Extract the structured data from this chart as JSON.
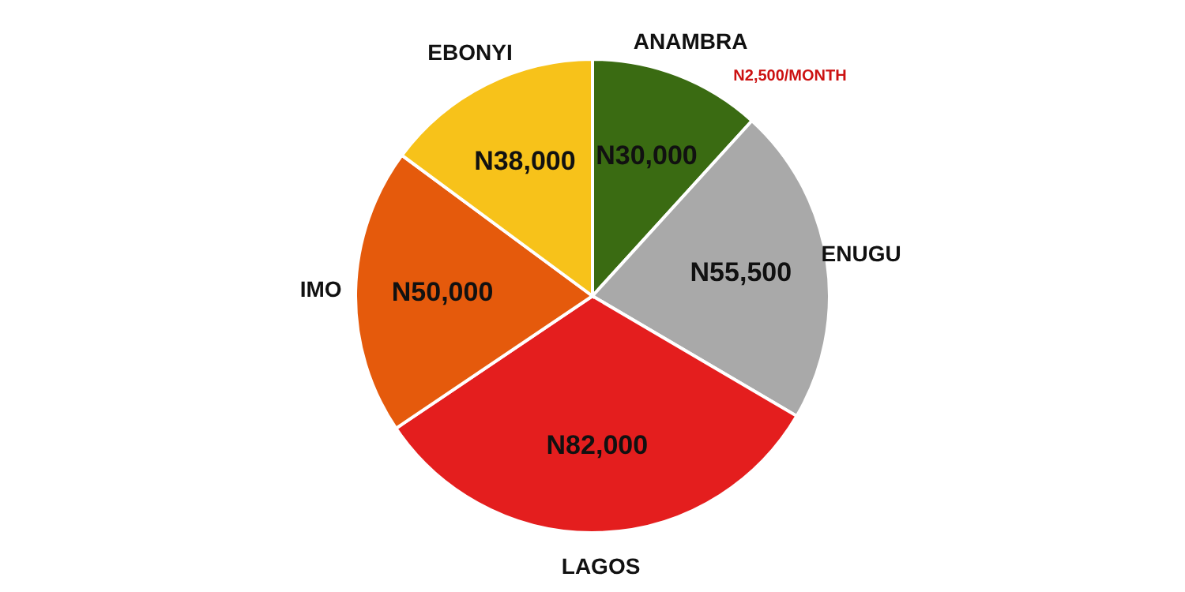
{
  "chart_data": {
    "type": "pie",
    "categories": [
      "ANAMBRA",
      "ENUGU",
      "LAGOS",
      "IMO",
      "EBONYI"
    ],
    "values": [
      30000,
      55500,
      82000,
      50000,
      38000
    ],
    "value_labels": [
      "N30,000",
      "N55,500",
      "N82,000",
      "N50,000",
      "N38,000"
    ],
    "colors": [
      "#3a6b12",
      "#a9a9a9",
      "#e41e1e",
      "#e55a0c",
      "#f7c21a"
    ],
    "annotations": [
      "N2,500/MONTH"
    ],
    "legend": false
  }
}
